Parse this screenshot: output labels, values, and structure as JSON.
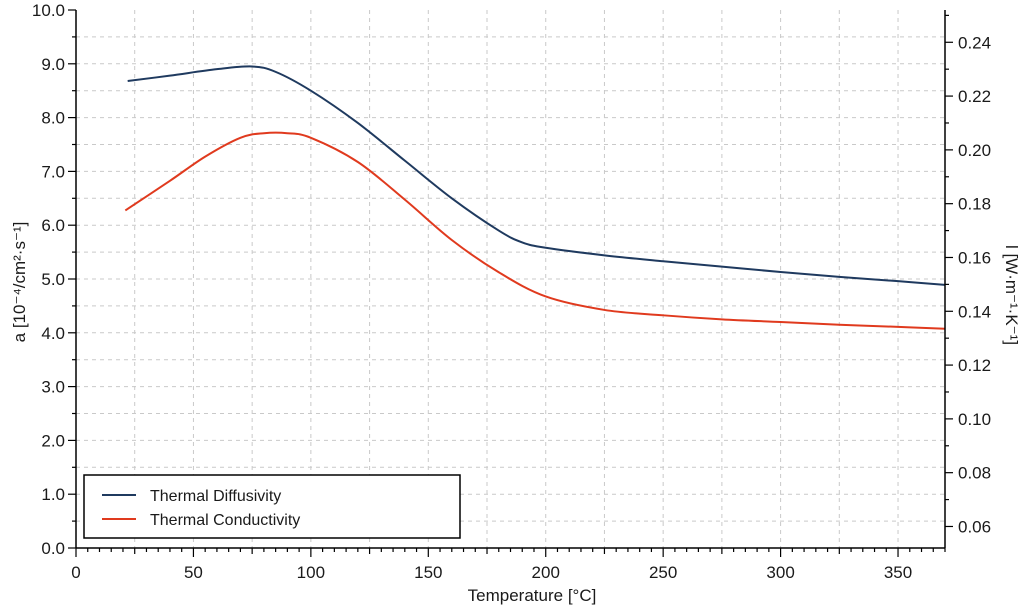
{
  "chart_data": {
    "type": "line",
    "title": "",
    "xlabel": "Temperature [°C]",
    "ylabel_left": "a [10⁻⁴/cm²·s⁻¹]",
    "ylabel_right": "l [W·m⁻¹·K⁻¹]",
    "xlim": [
      0,
      370
    ],
    "ylim_left": [
      0,
      10
    ],
    "ylim_right": [
      0.052,
      0.252
    ],
    "x_ticks": [
      0,
      50,
      100,
      150,
      200,
      250,
      300,
      350
    ],
    "y_left_ticks": [
      "0.0",
      "1.0",
      "2.0",
      "3.0",
      "4.0",
      "5.0",
      "6.0",
      "7.0",
      "8.0",
      "9.0",
      "10.0"
    ],
    "y_right_ticks": [
      "0.06",
      "0.08",
      "0.10",
      "0.12",
      "0.14",
      "0.16",
      "0.18",
      "0.20",
      "0.22",
      "0.24"
    ],
    "grid": true,
    "legend_position": "bottom-left",
    "series": [
      {
        "name": "Thermal Diffusivity",
        "axis": "left",
        "color": "#1f3a5f",
        "x": [
          22,
          40,
          60,
          75,
          85,
          100,
          120,
          140,
          160,
          180,
          190,
          200,
          225,
          250,
          275,
          300,
          325,
          350,
          370
        ],
        "y": [
          8.68,
          8.78,
          8.9,
          8.95,
          8.85,
          8.5,
          7.9,
          7.2,
          6.5,
          5.9,
          5.68,
          5.58,
          5.44,
          5.33,
          5.23,
          5.13,
          5.04,
          4.96,
          4.89
        ]
      },
      {
        "name": "Thermal Conductivity",
        "axis": "right",
        "color": "#e03a1e",
        "x": [
          21,
          40,
          55,
          70,
          80,
          90,
          100,
          120,
          140,
          160,
          180,
          200,
          225,
          250,
          275,
          300,
          325,
          350,
          370
        ],
        "y": [
          0.1775,
          0.1885,
          0.1975,
          0.2045,
          0.2062,
          0.2062,
          0.2045,
          0.1955,
          0.1815,
          0.1665,
          0.1545,
          0.1455,
          0.1405,
          0.1385,
          0.137,
          0.136,
          0.135,
          0.1342,
          0.1335
        ]
      }
    ]
  }
}
